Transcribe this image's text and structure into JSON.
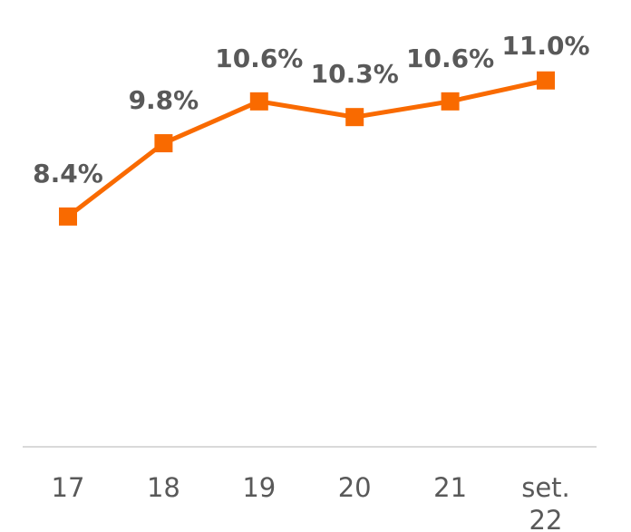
{
  "chart_data": {
    "type": "line",
    "categories": [
      "17",
      "18",
      "19",
      "20",
      "21",
      "set. 22"
    ],
    "series": [
      {
        "color": "#f96a00",
        "values": [
          8.4,
          9.8,
          10.6,
          10.3,
          10.6,
          11.0
        ],
        "value_labels": [
          "8.4%",
          "9.8%",
          "10.6%",
          "10.3%",
          "10.6%",
          "11.0%"
        ]
      }
    ],
    "ylim": [
      4,
      12
    ]
  }
}
